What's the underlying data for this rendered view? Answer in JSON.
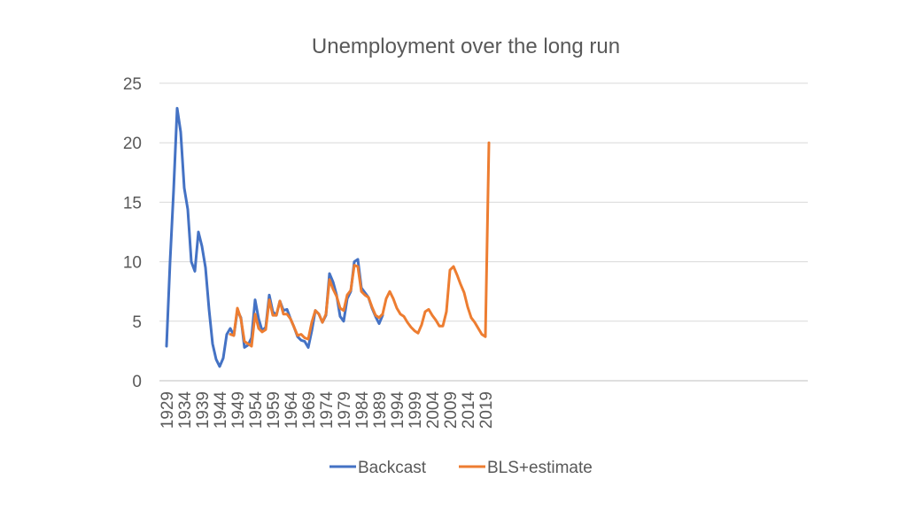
{
  "chart_data": {
    "type": "line",
    "title": "Unemployment over the long run",
    "xlabel": "",
    "ylabel": "",
    "ylim": [
      0,
      25
    ],
    "xlim": [
      1929,
      2020
    ],
    "y_ticks": [
      "0",
      "5",
      "10",
      "15",
      "20",
      "25"
    ],
    "x_ticks": [
      "1929",
      "1934",
      "1939",
      "1944",
      "1949",
      "1954",
      "1959",
      "1964",
      "1969",
      "1974",
      "1979",
      "1984",
      "1989",
      "1994",
      "1999",
      "2004",
      "2009",
      "2014",
      "2019"
    ],
    "grid": true,
    "legend_position": "bottom",
    "series": [
      {
        "name": "Backcast",
        "color": "#4472c4",
        "x": [
          1929,
          1930,
          1931,
          1932,
          1933,
          1934,
          1935,
          1936,
          1937,
          1938,
          1939,
          1940,
          1941,
          1942,
          1943,
          1944,
          1945,
          1946,
          1947,
          1948,
          1949,
          1950,
          1951,
          1952,
          1953,
          1954,
          1955,
          1956,
          1957,
          1958,
          1959,
          1960,
          1961,
          1962,
          1963,
          1964,
          1965,
          1966,
          1967,
          1968,
          1969,
          1970,
          1971,
          1972,
          1973,
          1974,
          1975,
          1976,
          1977,
          1978,
          1979,
          1980,
          1981,
          1982,
          1983,
          1984,
          1985,
          1986,
          1987,
          1988,
          1989,
          1990
        ],
        "values": [
          2.9,
          10.0,
          16.0,
          22.9,
          20.9,
          16.2,
          14.4,
          10.0,
          9.2,
          12.5,
          11.3,
          9.5,
          6.0,
          3.1,
          1.8,
          1.2,
          1.9,
          3.9,
          4.4,
          3.8,
          5.9,
          5.3,
          2.8,
          3.0,
          3.6,
          6.8,
          5.2,
          4.2,
          4.5,
          7.2,
          5.8,
          5.5,
          6.7,
          5.9,
          6.0,
          5.2,
          4.5,
          3.7,
          3.4,
          3.3,
          2.8,
          4.2,
          5.9,
          5.6,
          4.9,
          5.5,
          9.0,
          8.3,
          7.2,
          5.4,
          5.0,
          6.9,
          7.5,
          10.0,
          10.2,
          7.8,
          7.4,
          7.0,
          6.1,
          5.4,
          4.8,
          5.5
        ]
      },
      {
        "name": "BLS+estimate",
        "color": "#ed7d31",
        "x": [
          1947,
          1948,
          1949,
          1950,
          1951,
          1952,
          1953,
          1954,
          1955,
          1956,
          1957,
          1958,
          1959,
          1960,
          1961,
          1962,
          1963,
          1964,
          1965,
          1966,
          1967,
          1968,
          1969,
          1970,
          1971,
          1972,
          1973,
          1974,
          1975,
          1976,
          1977,
          1978,
          1979,
          1980,
          1981,
          1982,
          1983,
          1984,
          1985,
          1986,
          1987,
          1988,
          1989,
          1990,
          1991,
          1992,
          1993,
          1994,
          1995,
          1996,
          1997,
          1998,
          1999,
          2000,
          2001,
          2002,
          2003,
          2004,
          2005,
          2006,
          2007,
          2008,
          2009,
          2010,
          2011,
          2012,
          2013,
          2014,
          2015,
          2016,
          2017,
          2018,
          2019,
          2020
        ],
        "values": [
          3.9,
          3.8,
          6.1,
          5.2,
          3.3,
          3.1,
          2.9,
          5.6,
          4.4,
          4.1,
          4.3,
          6.8,
          5.5,
          5.5,
          6.7,
          5.6,
          5.6,
          5.2,
          4.5,
          3.8,
          3.9,
          3.6,
          3.5,
          4.9,
          5.9,
          5.6,
          4.9,
          5.6,
          8.5,
          7.7,
          7.1,
          6.1,
          5.9,
          7.2,
          7.6,
          9.7,
          9.6,
          7.5,
          7.2,
          7.0,
          6.2,
          5.5,
          5.3,
          5.6,
          6.9,
          7.5,
          6.9,
          6.1,
          5.6,
          5.4,
          4.9,
          4.5,
          4.2,
          4.0,
          4.7,
          5.8,
          6.0,
          5.5,
          5.1,
          4.6,
          4.6,
          5.8,
          9.3,
          9.6,
          8.9,
          8.1,
          7.4,
          6.2,
          5.3,
          4.9,
          4.4,
          3.9,
          3.7,
          20.0
        ]
      }
    ]
  }
}
